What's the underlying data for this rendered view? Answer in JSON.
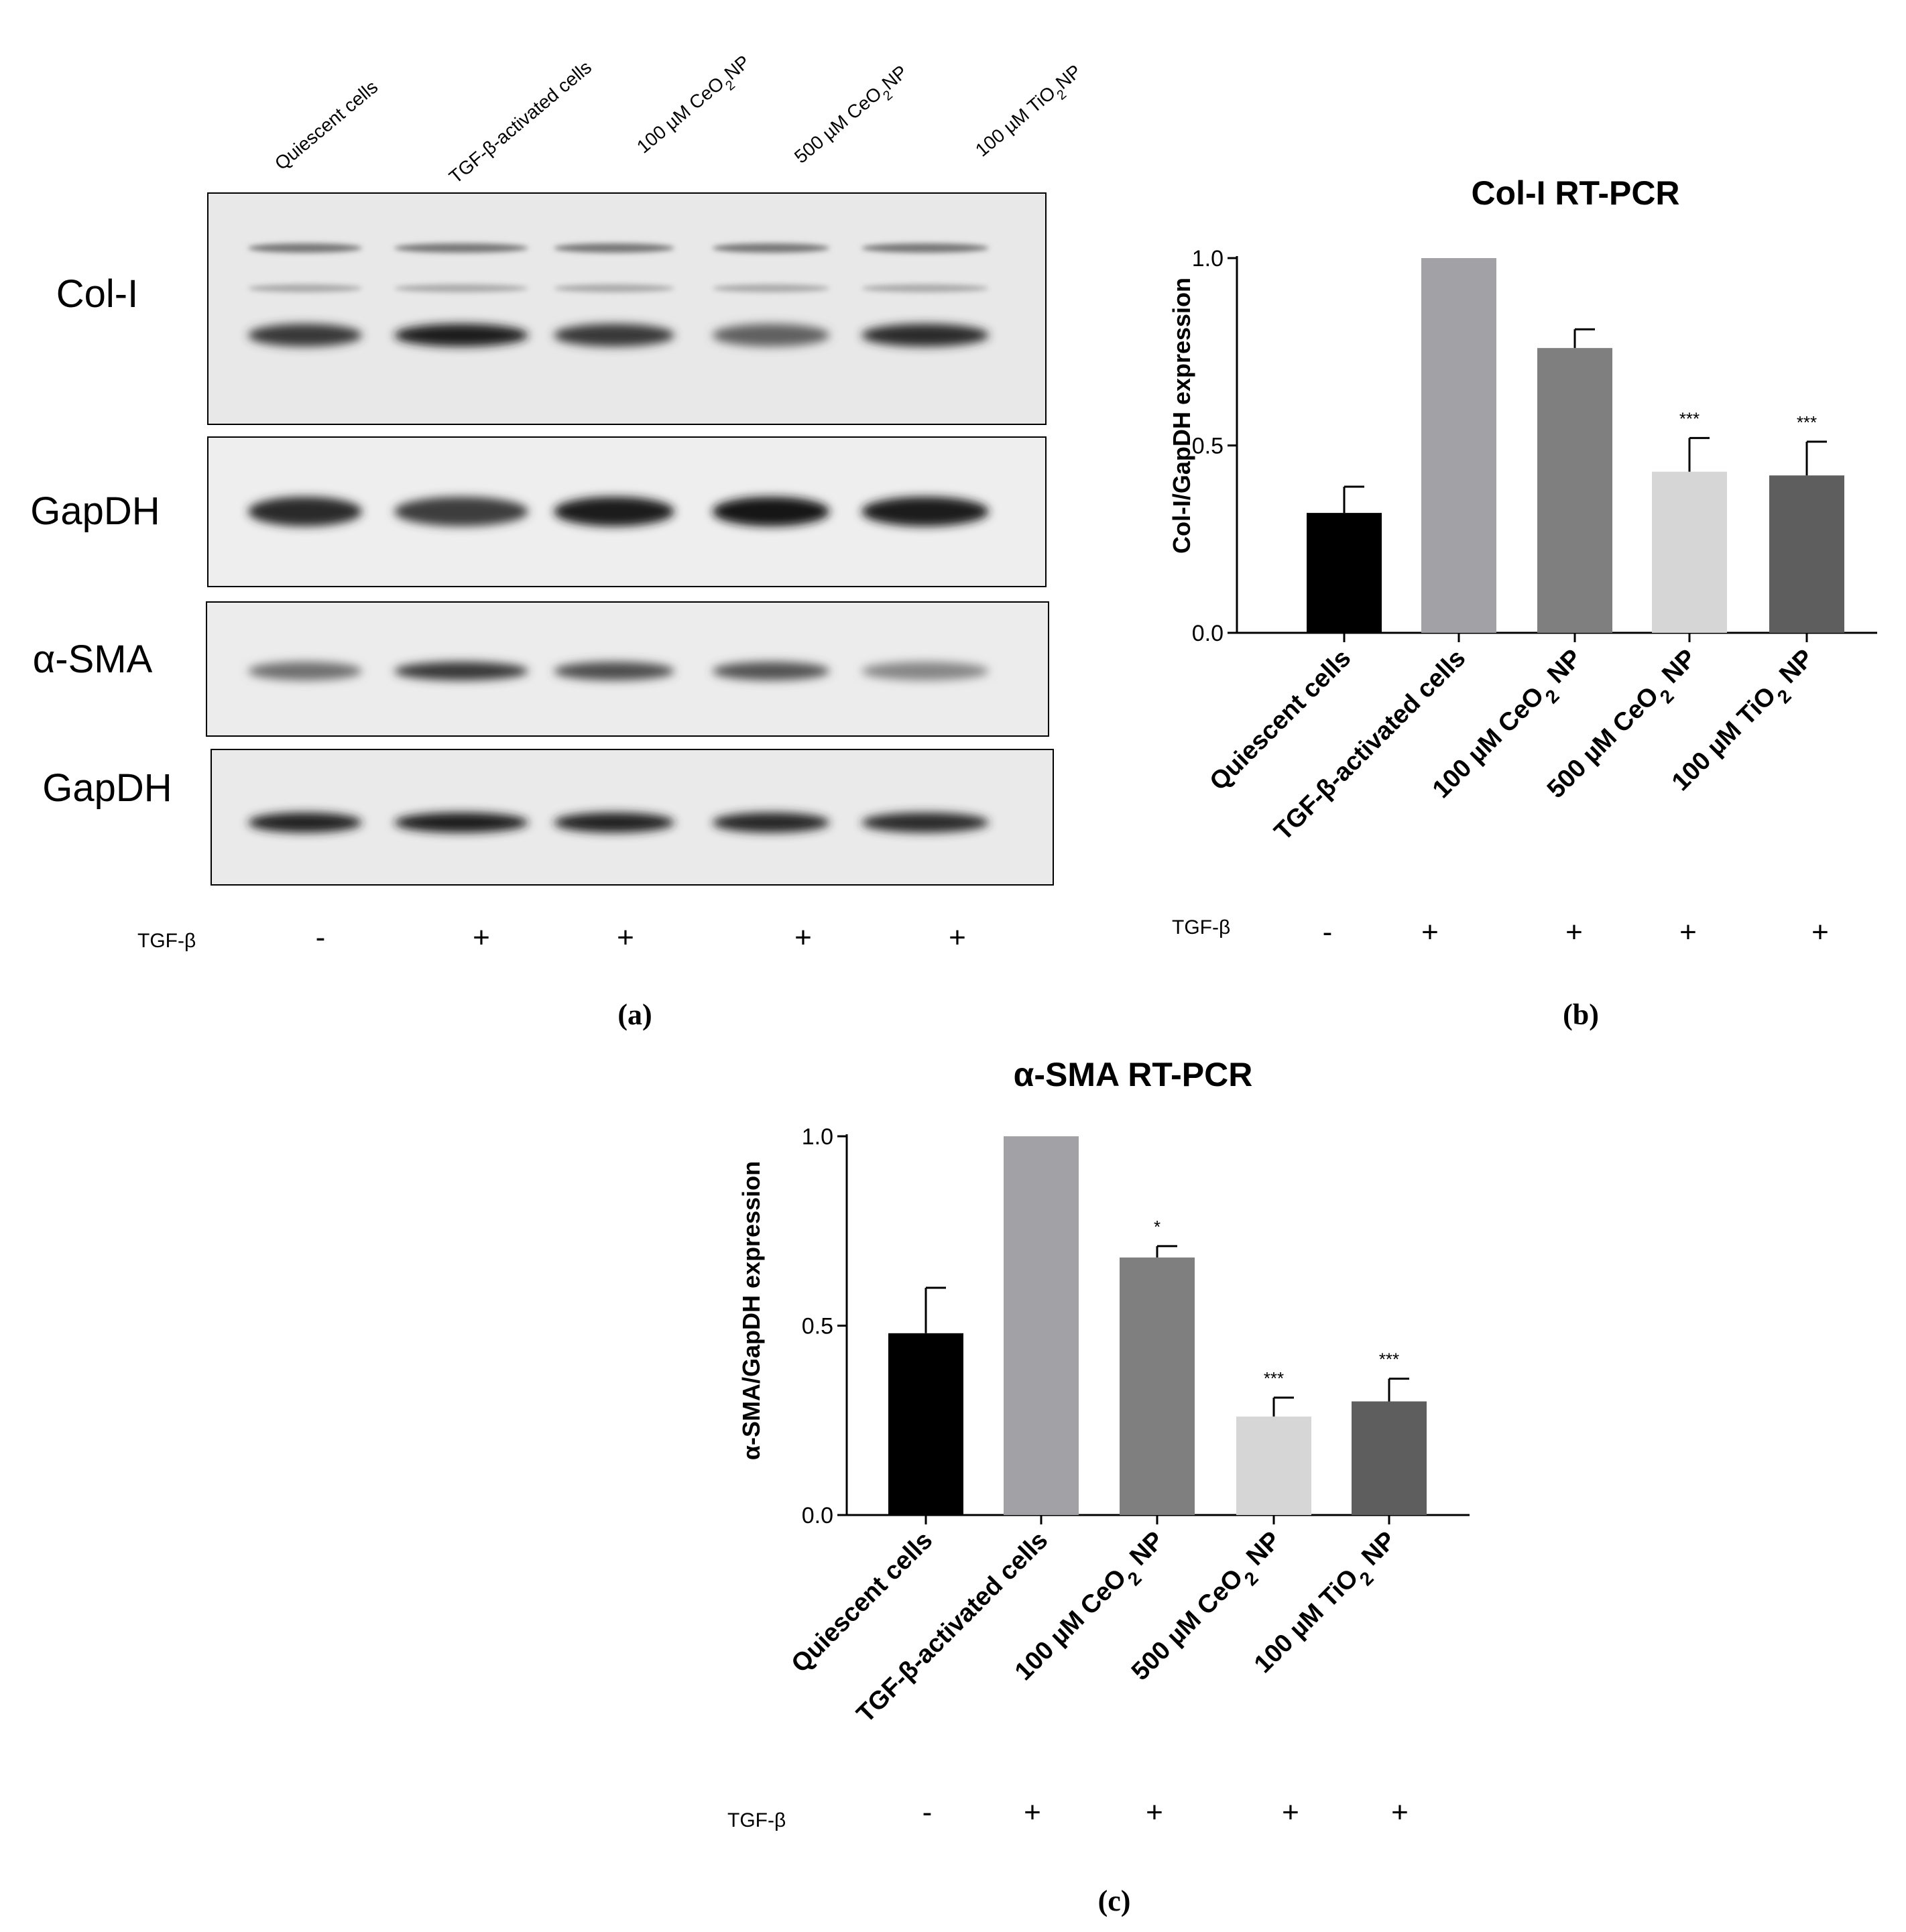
{
  "treatment_label": "TGF-β",
  "panel_a": {
    "caption": "(a)",
    "lane_labels": [
      {
        "pre": "Quiescent cells",
        "sub": "",
        "post": ""
      },
      {
        "pre": "TGF-β-activated cells",
        "sub": "",
        "post": ""
      },
      {
        "pre": "100 µM CeO",
        "sub": "2",
        "post": "NP"
      },
      {
        "pre": "500 µM CeO",
        "sub": "2",
        "post": "NP"
      },
      {
        "pre": "100 µM TiO",
        "sub": "2",
        "post": "NP"
      }
    ],
    "blots": [
      {
        "label": "Col-I",
        "band_intensity": [
          0.8,
          0.92,
          0.8,
          0.62,
          0.85
        ]
      },
      {
        "label": "GapDH",
        "band_intensity": [
          0.85,
          0.78,
          0.92,
          0.95,
          0.93
        ]
      },
      {
        "label": "α-SMA",
        "band_intensity": [
          0.55,
          0.8,
          0.7,
          0.68,
          0.45
        ]
      },
      {
        "label": "GapDH",
        "band_intensity": [
          0.9,
          0.92,
          0.9,
          0.88,
          0.85
        ]
      }
    ],
    "tgf_signs": [
      "-",
      "+",
      "+",
      "+",
      "+"
    ]
  },
  "chart_data": [
    {
      "type": "bar",
      "panel": "(b)",
      "title": "Col-I RT-PCR",
      "ylabel": "Col-I/GapDH expression",
      "xlabel": "",
      "ylim": [
        0,
        1.0
      ],
      "yticks": [
        "0.0",
        "0.5",
        "1.0"
      ],
      "categories": [
        {
          "pre": "Quiescent cells",
          "sub": "",
          "post": ""
        },
        {
          "pre": "TGF-β-activated cells",
          "sub": "",
          "post": ""
        },
        {
          "pre": "100 µM CeO",
          "sub": "2",
          "post": " NP"
        },
        {
          "pre": "500 µM CeO",
          "sub": "2",
          "post": " NP"
        },
        {
          "pre": "100 µM TiO",
          "sub": "2",
          "post": " NP"
        }
      ],
      "values": [
        0.32,
        1.0,
        0.76,
        0.43,
        0.42
      ],
      "errors": [
        0.07,
        0.0,
        0.05,
        0.09,
        0.09
      ],
      "significance": [
        "",
        "",
        "",
        "***",
        "***"
      ],
      "colors": [
        "#000000",
        "#a2a1a6",
        "#7f7f7f",
        "#d6d6d6",
        "#5e5e5e"
      ],
      "tgf_signs": [
        "-",
        "+",
        "+",
        "+",
        "+"
      ],
      "grid": false
    },
    {
      "type": "bar",
      "panel": "(c)",
      "title": "α-SMA RT-PCR",
      "ylabel": "α-SMA/GapDH expression",
      "xlabel": "",
      "ylim": [
        0,
        1.0
      ],
      "yticks": [
        "0.0",
        "0.5",
        "1.0"
      ],
      "categories": [
        {
          "pre": "Quiescent cells",
          "sub": "",
          "post": ""
        },
        {
          "pre": "TGF-β-activated cells",
          "sub": "",
          "post": ""
        },
        {
          "pre": "100 µM CeO",
          "sub": "2",
          "post": " NP"
        },
        {
          "pre": "500 µM CeO",
          "sub": "2",
          "post": " NP"
        },
        {
          "pre": "100 µM TiO",
          "sub": "2",
          "post": " NP"
        }
      ],
      "values": [
        0.48,
        1.0,
        0.68,
        0.26,
        0.3
      ],
      "errors": [
        0.12,
        0.0,
        0.03,
        0.05,
        0.06
      ],
      "significance": [
        "",
        "",
        "*",
        "***",
        "***"
      ],
      "colors": [
        "#000000",
        "#a2a1a6",
        "#7f7f7f",
        "#d6d6d6",
        "#5e5e5e"
      ],
      "tgf_signs": [
        "-",
        "+",
        "+",
        "+",
        "+"
      ],
      "grid": false
    }
  ]
}
